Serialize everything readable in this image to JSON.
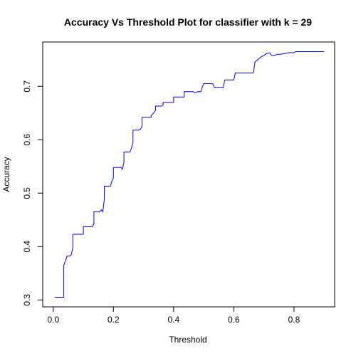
{
  "chart_data": {
    "type": "line",
    "title": "Accuracy Vs Threshold Plot for classifier with k = 29",
    "xlabel": "Threshold",
    "ylabel": "Accuracy",
    "xlim": [
      -0.035,
      0.935
    ],
    "ylim": [
      0.287,
      0.783
    ],
    "xticks": [
      "0.0",
      "0.2",
      "0.4",
      "0.6",
      "0.8"
    ],
    "yticks": [
      "0.3",
      "0.4",
      "0.5",
      "0.6",
      "0.7"
    ],
    "grid": false,
    "legend": "none",
    "line_color": "#0000ff",
    "series": [
      {
        "x": [
          0.005,
          0.035,
          0.035,
          0.045,
          0.045,
          0.055,
          0.06,
          0.065,
          0.065,
          0.1,
          0.1,
          0.13,
          0.135,
          0.135,
          0.155,
          0.16,
          0.165,
          0.17,
          0.17,
          0.19,
          0.195,
          0.2,
          0.2,
          0.225,
          0.23,
          0.235,
          0.235,
          0.255,
          0.26,
          0.265,
          0.265,
          0.285,
          0.29,
          0.295,
          0.295,
          0.325,
          0.325,
          0.33,
          0.34,
          0.34,
          0.36,
          0.365,
          0.365,
          0.4,
          0.4,
          0.435,
          0.435,
          0.465,
          0.47,
          0.48,
          0.49,
          0.495,
          0.5,
          0.53,
          0.535,
          0.565,
          0.57,
          0.6,
          0.605,
          0.665,
          0.67,
          0.675,
          0.68,
          0.69,
          0.7,
          0.71,
          0.72,
          0.725,
          0.735,
          0.745,
          0.755,
          0.775,
          0.78,
          0.8,
          0.805,
          0.9
        ],
        "y": [
          0.305,
          0.305,
          0.365,
          0.38,
          0.382,
          0.382,
          0.385,
          0.398,
          0.423,
          0.423,
          0.437,
          0.437,
          0.442,
          0.465,
          0.465,
          0.469,
          0.465,
          0.49,
          0.513,
          0.513,
          0.523,
          0.528,
          0.548,
          0.548,
          0.545,
          0.558,
          0.577,
          0.577,
          0.585,
          0.595,
          0.618,
          0.618,
          0.62,
          0.625,
          0.642,
          0.642,
          0.645,
          0.648,
          0.655,
          0.663,
          0.663,
          0.665,
          0.67,
          0.67,
          0.68,
          0.68,
          0.69,
          0.69,
          0.688,
          0.69,
          0.69,
          0.698,
          0.705,
          0.705,
          0.698,
          0.698,
          0.712,
          0.712,
          0.725,
          0.725,
          0.745,
          0.748,
          0.75,
          0.755,
          0.758,
          0.762,
          0.762,
          0.758,
          0.758,
          0.76,
          0.76,
          0.762,
          0.763,
          0.763,
          0.765,
          0.765
        ]
      }
    ]
  }
}
